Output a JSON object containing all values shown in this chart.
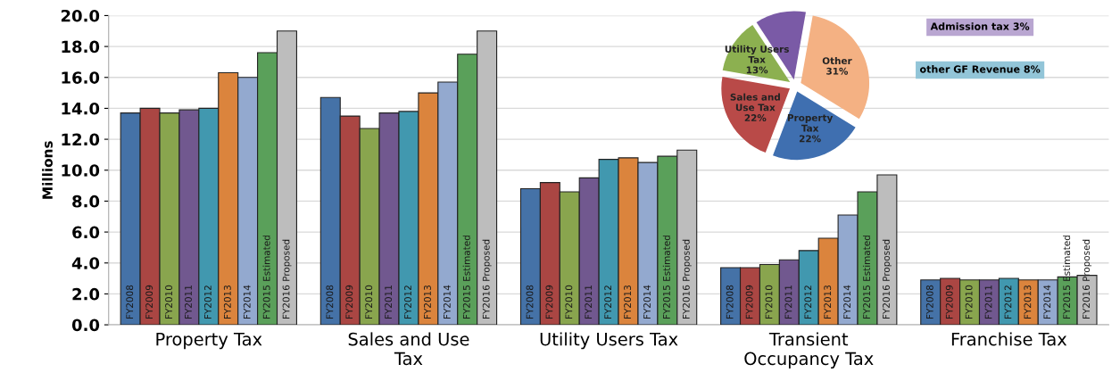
{
  "chart_data": [
    {
      "type": "bar",
      "ylabel": "Millions",
      "categories": [
        "Property Tax",
        "Sales and Use\nTax",
        "Utility Users Tax",
        "Transient\nOccupancy Tax",
        "Franchise Tax"
      ],
      "ylim": [
        0,
        20
      ],
      "yticks": [
        {
          "value": 0,
          "label": "0.0"
        },
        {
          "value": 2,
          "label": "2.0"
        },
        {
          "value": 4,
          "label": "4.0"
        },
        {
          "value": 6,
          "label": "6.0"
        },
        {
          "value": 8,
          "label": "8.0"
        },
        {
          "value": 10,
          "label": "10.0"
        },
        {
          "value": 12,
          "label": "12.0"
        },
        {
          "value": 14,
          "label": "14.0"
        },
        {
          "value": 16,
          "label": "16.0"
        },
        {
          "value": 18,
          "label": "18.0"
        },
        {
          "value": 20,
          "label": "20.0"
        }
      ],
      "grid": "y",
      "legend": false,
      "series": [
        {
          "name": "FY2008",
          "color": "#4572a7",
          "values": [
            13.7,
            14.7,
            8.8,
            3.7,
            2.9
          ]
        },
        {
          "name": "FY2009",
          "color": "#aa4643",
          "values": [
            14.0,
            13.5,
            9.2,
            3.7,
            3.0
          ]
        },
        {
          "name": "FY2010",
          "color": "#89a54e",
          "values": [
            13.7,
            12.7,
            8.6,
            3.9,
            2.9
          ]
        },
        {
          "name": "FY2011",
          "color": "#71588f",
          "values": [
            13.9,
            13.7,
            9.5,
            4.2,
            2.9
          ]
        },
        {
          "name": "FY2012",
          "color": "#4198af",
          "values": [
            14.0,
            13.8,
            10.7,
            4.8,
            3.0
          ]
        },
        {
          "name": "FY2013",
          "color": "#db843d",
          "values": [
            16.3,
            15.0,
            10.8,
            5.6,
            2.9
          ]
        },
        {
          "name": "FY2014",
          "color": "#93a9cf",
          "values": [
            16.0,
            15.7,
            10.5,
            7.1,
            2.9
          ]
        },
        {
          "name": "FY2015 Estimated",
          "color": "#5aa05a",
          "values": [
            17.6,
            17.5,
            10.9,
            8.6,
            3.1
          ]
        },
        {
          "name": "FY2016 Proposed",
          "color": "#bdbdbd",
          "values": [
            19.0,
            19.0,
            11.3,
            9.7,
            3.2
          ]
        }
      ]
    },
    {
      "type": "pie",
      "categories": [
        "Other",
        "Property Tax",
        "Sales and Use Tax",
        "Utility Users Tax",
        null
      ],
      "values": [
        31,
        22,
        22,
        13,
        12
      ],
      "value_labels": [
        "31%",
        "22%",
        "22%",
        "13%",
        null
      ],
      "colors": [
        "#f4b183",
        "#3f6fb0",
        "#b94a48",
        "#8cb050",
        "#7a5aa6"
      ],
      "annotations": [
        "Admission tax 3%",
        "other GF Revenue 8%"
      ]
    }
  ]
}
